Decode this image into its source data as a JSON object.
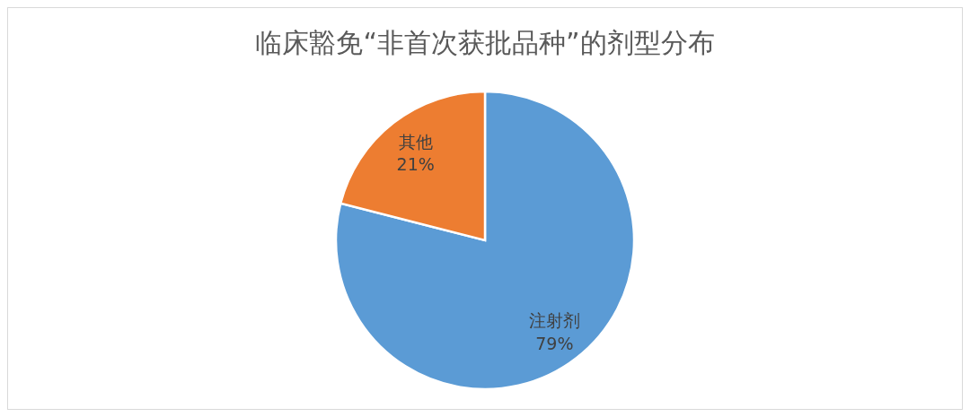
{
  "chart_data": {
    "type": "pie",
    "title": "临床豁免“非首次获批品种”的剂型分布",
    "categories": [
      "注射剂",
      "其他"
    ],
    "values": [
      79,
      21
    ],
    "colors": [
      "#5b9bd5",
      "#ed7d31"
    ],
    "value_labels": [
      "79%",
      "21%"
    ]
  }
}
